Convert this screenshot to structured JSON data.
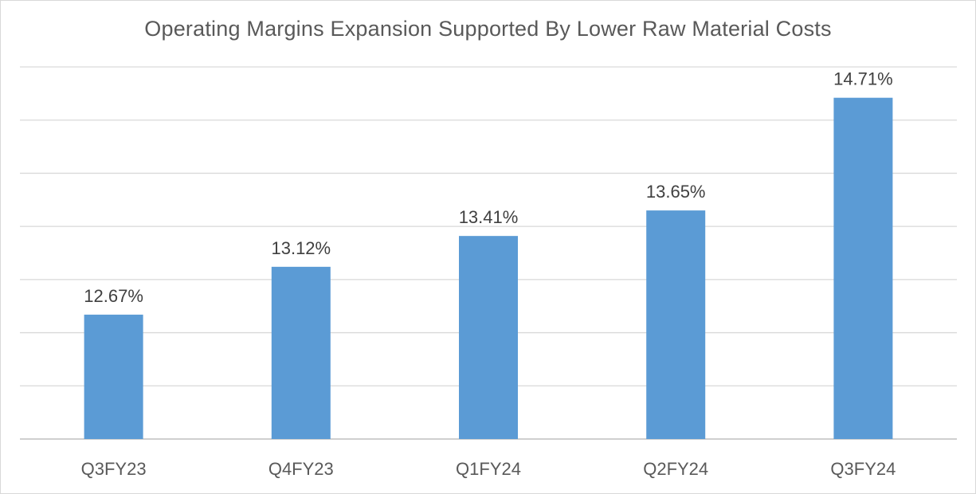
{
  "chart_data": {
    "type": "bar",
    "title": "Operating Margins Expansion Supported By Lower Raw Material Costs",
    "categories": [
      "Q3FY23",
      "Q4FY23",
      "Q1FY24",
      "Q2FY24",
      "Q3FY24"
    ],
    "values": [
      12.67,
      13.12,
      13.41,
      13.65,
      14.71
    ],
    "data_labels": [
      "12.67%",
      "13.12%",
      "13.41%",
      "13.65%",
      "14.71%"
    ],
    "ylim": [
      11.5,
      15
    ],
    "yticks_visible": false,
    "grid": true,
    "legend": "none",
    "colors": {
      "bar": "#5b9bd5"
    }
  }
}
